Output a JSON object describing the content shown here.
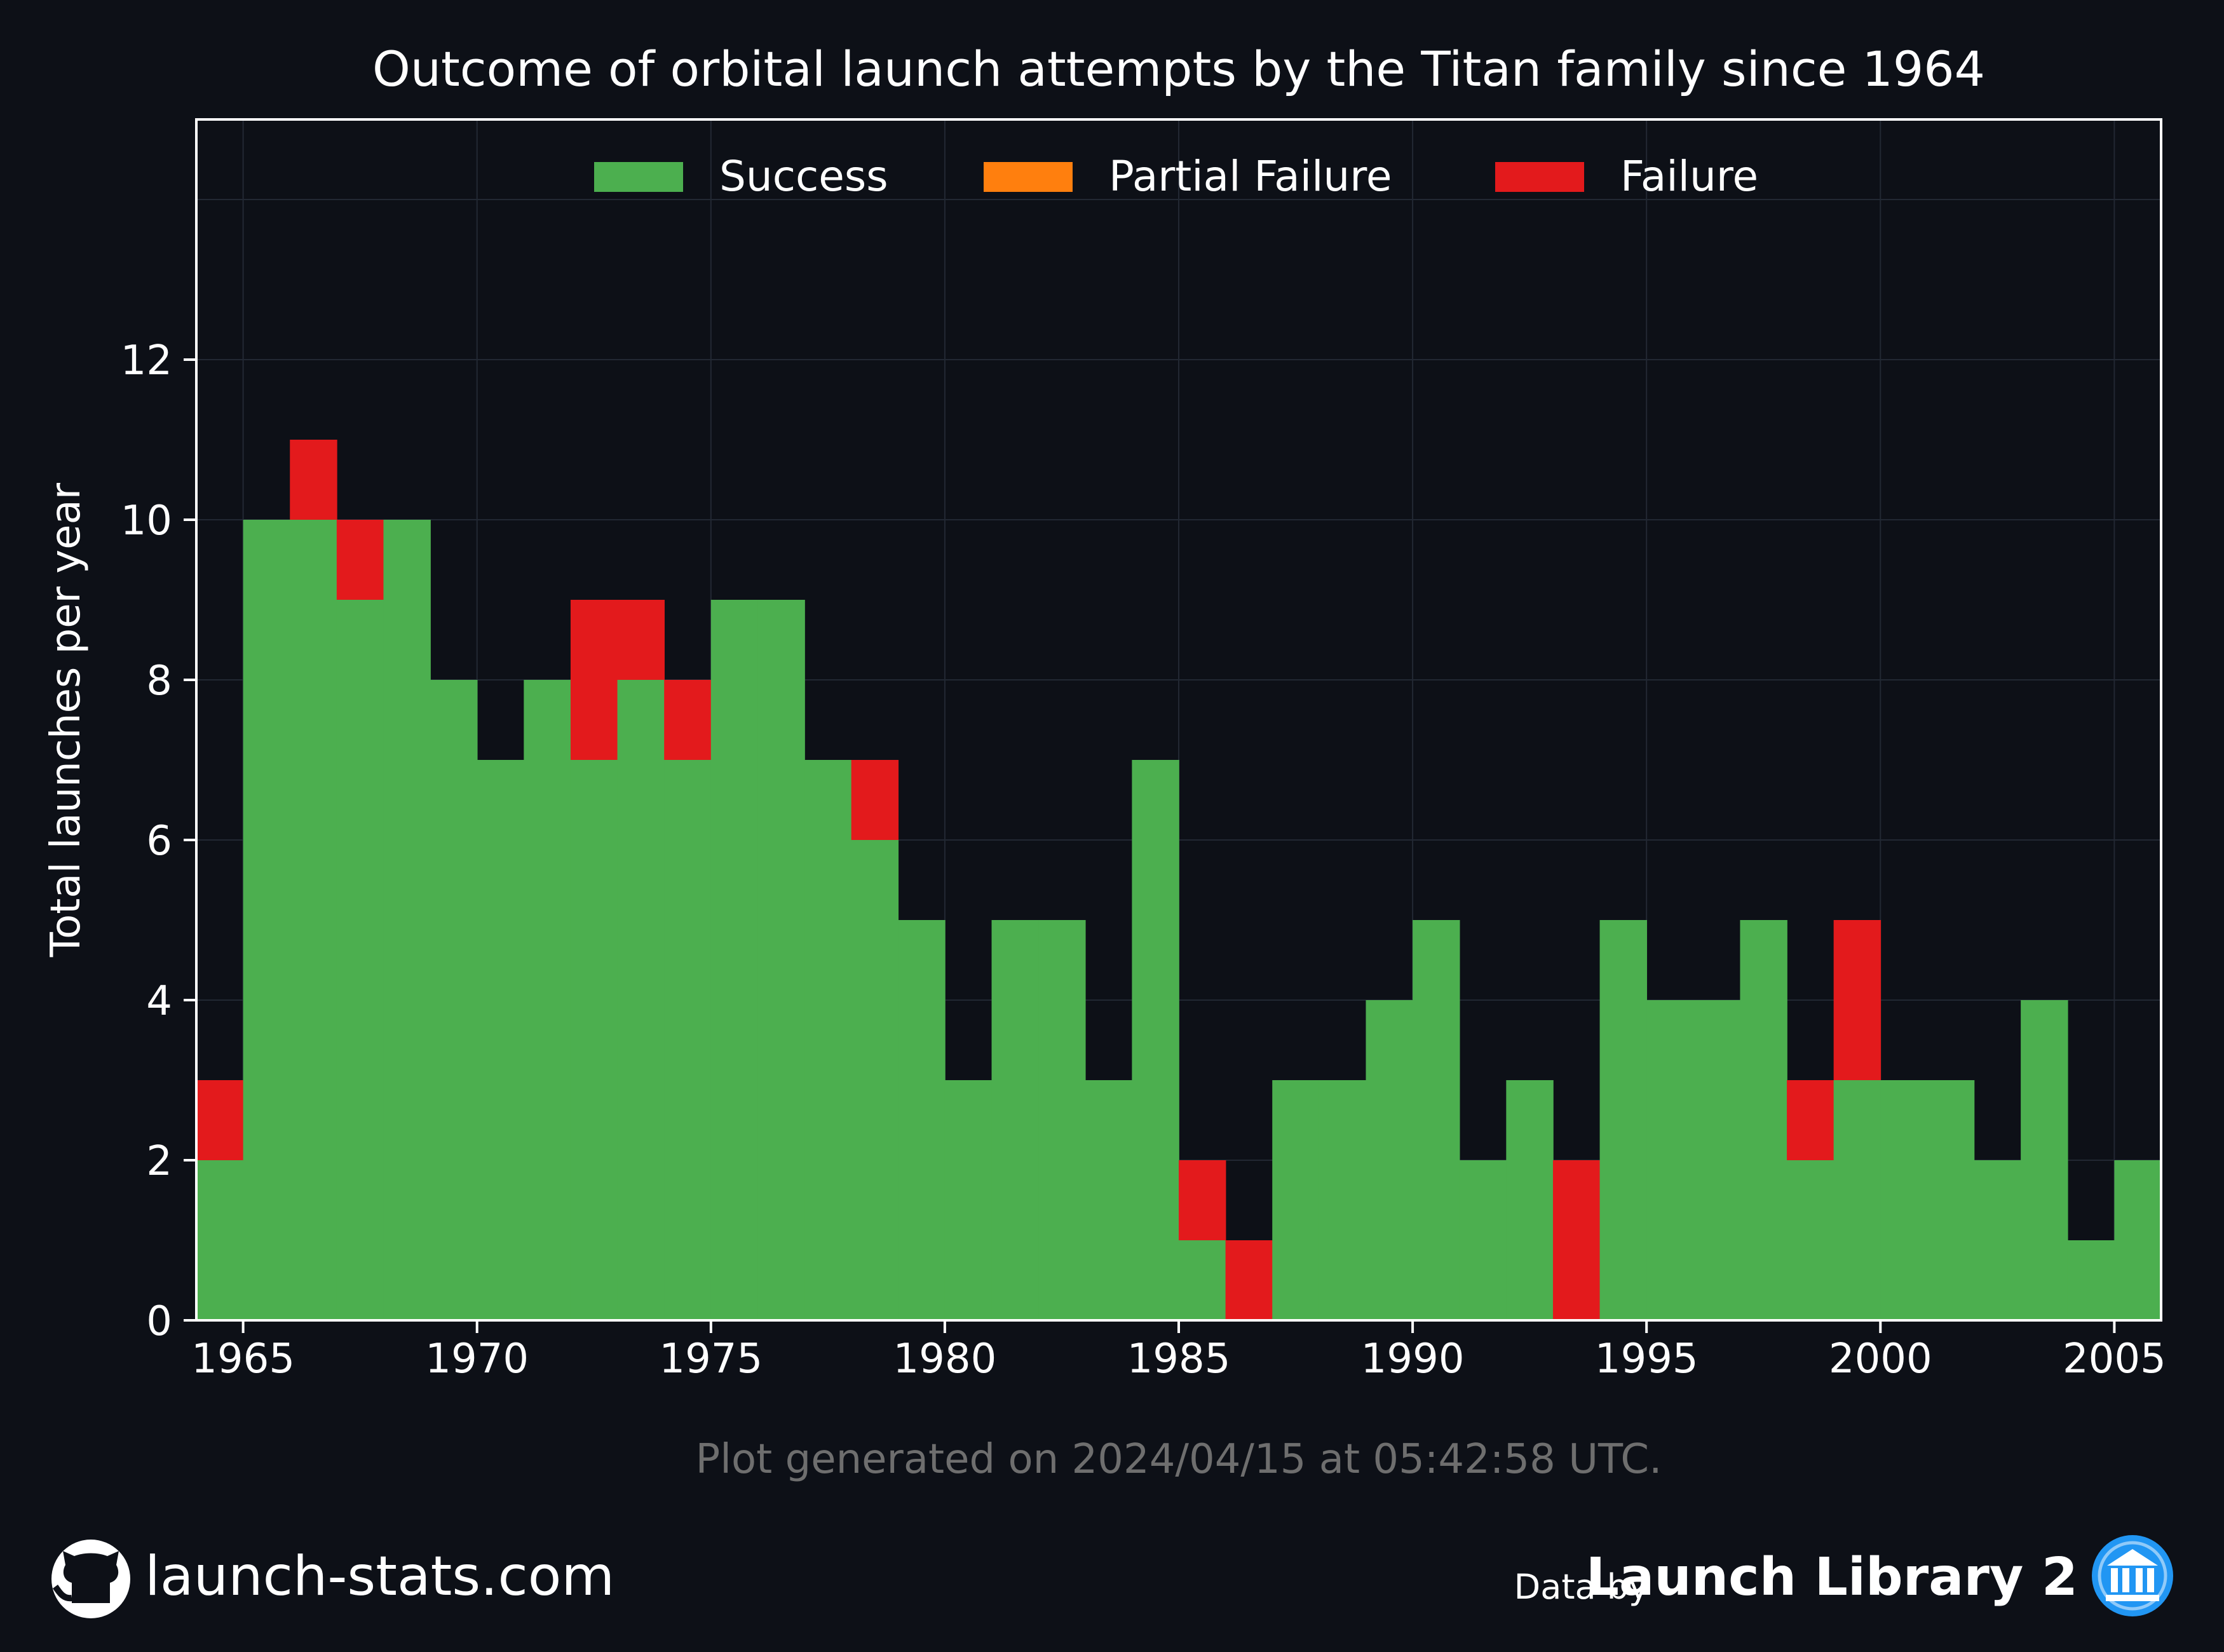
{
  "footer": {
    "github_label": "launch-stats.com",
    "generated": "Plot generated on 2024/04/15 at 05:42:58 UTC.",
    "data_by": "Data by",
    "library": "Launch Library 2"
  },
  "colors": {
    "background": "#0d1017",
    "success": "#4caf4f",
    "partial_failure": "#ff7f0e",
    "failure": "#e31a1c",
    "grid": "#222833",
    "muted_text": "#6e6e6e",
    "logo_blue": "#2196f3"
  },
  "chart_data": {
    "type": "bar",
    "stacked": true,
    "title": "Outcome of orbital launch attempts by the Titan family since 1964",
    "xlabel": "",
    "ylabel": "Total launches per year",
    "xlim": [
      1964,
      2006
    ],
    "ylim": [
      0,
      15
    ],
    "xticks": [
      1965,
      1970,
      1975,
      1980,
      1985,
      1990,
      1995,
      2000,
      2005
    ],
    "yticks": [
      0,
      2,
      4,
      6,
      8,
      10,
      12
    ],
    "grid": true,
    "legend_position": "top-center",
    "years": [
      1964,
      1965,
      1966,
      1967,
      1968,
      1969,
      1970,
      1971,
      1972,
      1973,
      1974,
      1975,
      1976,
      1977,
      1978,
      1979,
      1980,
      1981,
      1982,
      1983,
      1984,
      1985,
      1986,
      1987,
      1988,
      1989,
      1990,
      1991,
      1992,
      1993,
      1994,
      1995,
      1996,
      1997,
      1998,
      1999,
      2000,
      2001,
      2002,
      2003,
      2004,
      2005
    ],
    "series": [
      {
        "name": "Success",
        "color": "#4caf4f",
        "values": [
          2,
          10,
          10,
          9,
          10,
          8,
          7,
          8,
          7,
          8,
          7,
          9,
          9,
          7,
          6,
          5,
          3,
          5,
          5,
          3,
          7,
          1,
          0,
          3,
          3,
          4,
          5,
          2,
          3,
          0,
          5,
          4,
          4,
          5,
          2,
          3,
          3,
          3,
          2,
          4,
          1,
          2
        ]
      },
      {
        "name": "Partial Failure",
        "color": "#ff7f0e",
        "values": [
          0,
          0,
          0,
          0,
          0,
          0,
          0,
          0,
          0,
          0,
          0,
          0,
          0,
          0,
          0,
          0,
          0,
          0,
          0,
          0,
          0,
          0,
          0,
          0,
          0,
          0,
          0,
          0,
          0,
          0,
          0,
          0,
          0,
          0,
          0,
          0,
          0,
          0,
          0,
          0,
          0,
          0
        ]
      },
      {
        "name": "Failure",
        "color": "#e31a1c",
        "values": [
          1,
          0,
          1,
          1,
          0,
          0,
          0,
          0,
          2,
          1,
          1,
          0,
          0,
          0,
          1,
          0,
          0,
          0,
          0,
          0,
          0,
          1,
          1,
          0,
          0,
          0,
          0,
          0,
          0,
          2,
          0,
          0,
          0,
          0,
          1,
          2,
          0,
          0,
          0,
          0,
          0,
          0
        ]
      }
    ]
  }
}
